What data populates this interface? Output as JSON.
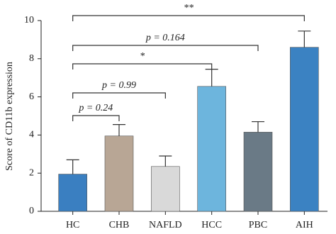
{
  "chart_data": {
    "type": "bar",
    "y_label": "Score of CD11b expression",
    "categories": [
      "HC",
      "CHB",
      "NAFLD",
      "HCC",
      "PBC",
      "AIH"
    ],
    "values": [
      1.95,
      3.95,
      2.35,
      6.55,
      4.15,
      8.6
    ],
    "errors": [
      0.75,
      0.6,
      0.55,
      0.9,
      0.55,
      0.85
    ],
    "colors": [
      "#3a7fc1",
      "#b8a695",
      "#d9d9d9",
      "#6db5dd",
      "#6a7a86",
      "#3b82c2"
    ],
    "ylim": [
      0,
      10
    ],
    "yticks": [
      0,
      2,
      4,
      6,
      8,
      10
    ],
    "annotations": [
      {
        "text": "p = 0.24",
        "from": 0,
        "to": 1
      },
      {
        "text": "p = 0.99",
        "from": 0,
        "to": 2
      },
      {
        "text": "*",
        "from": 0,
        "to": 3
      },
      {
        "text": "p = 0.164",
        "from": 0,
        "to": 4
      },
      {
        "text": "**",
        "from": 0,
        "to": 5
      }
    ]
  }
}
